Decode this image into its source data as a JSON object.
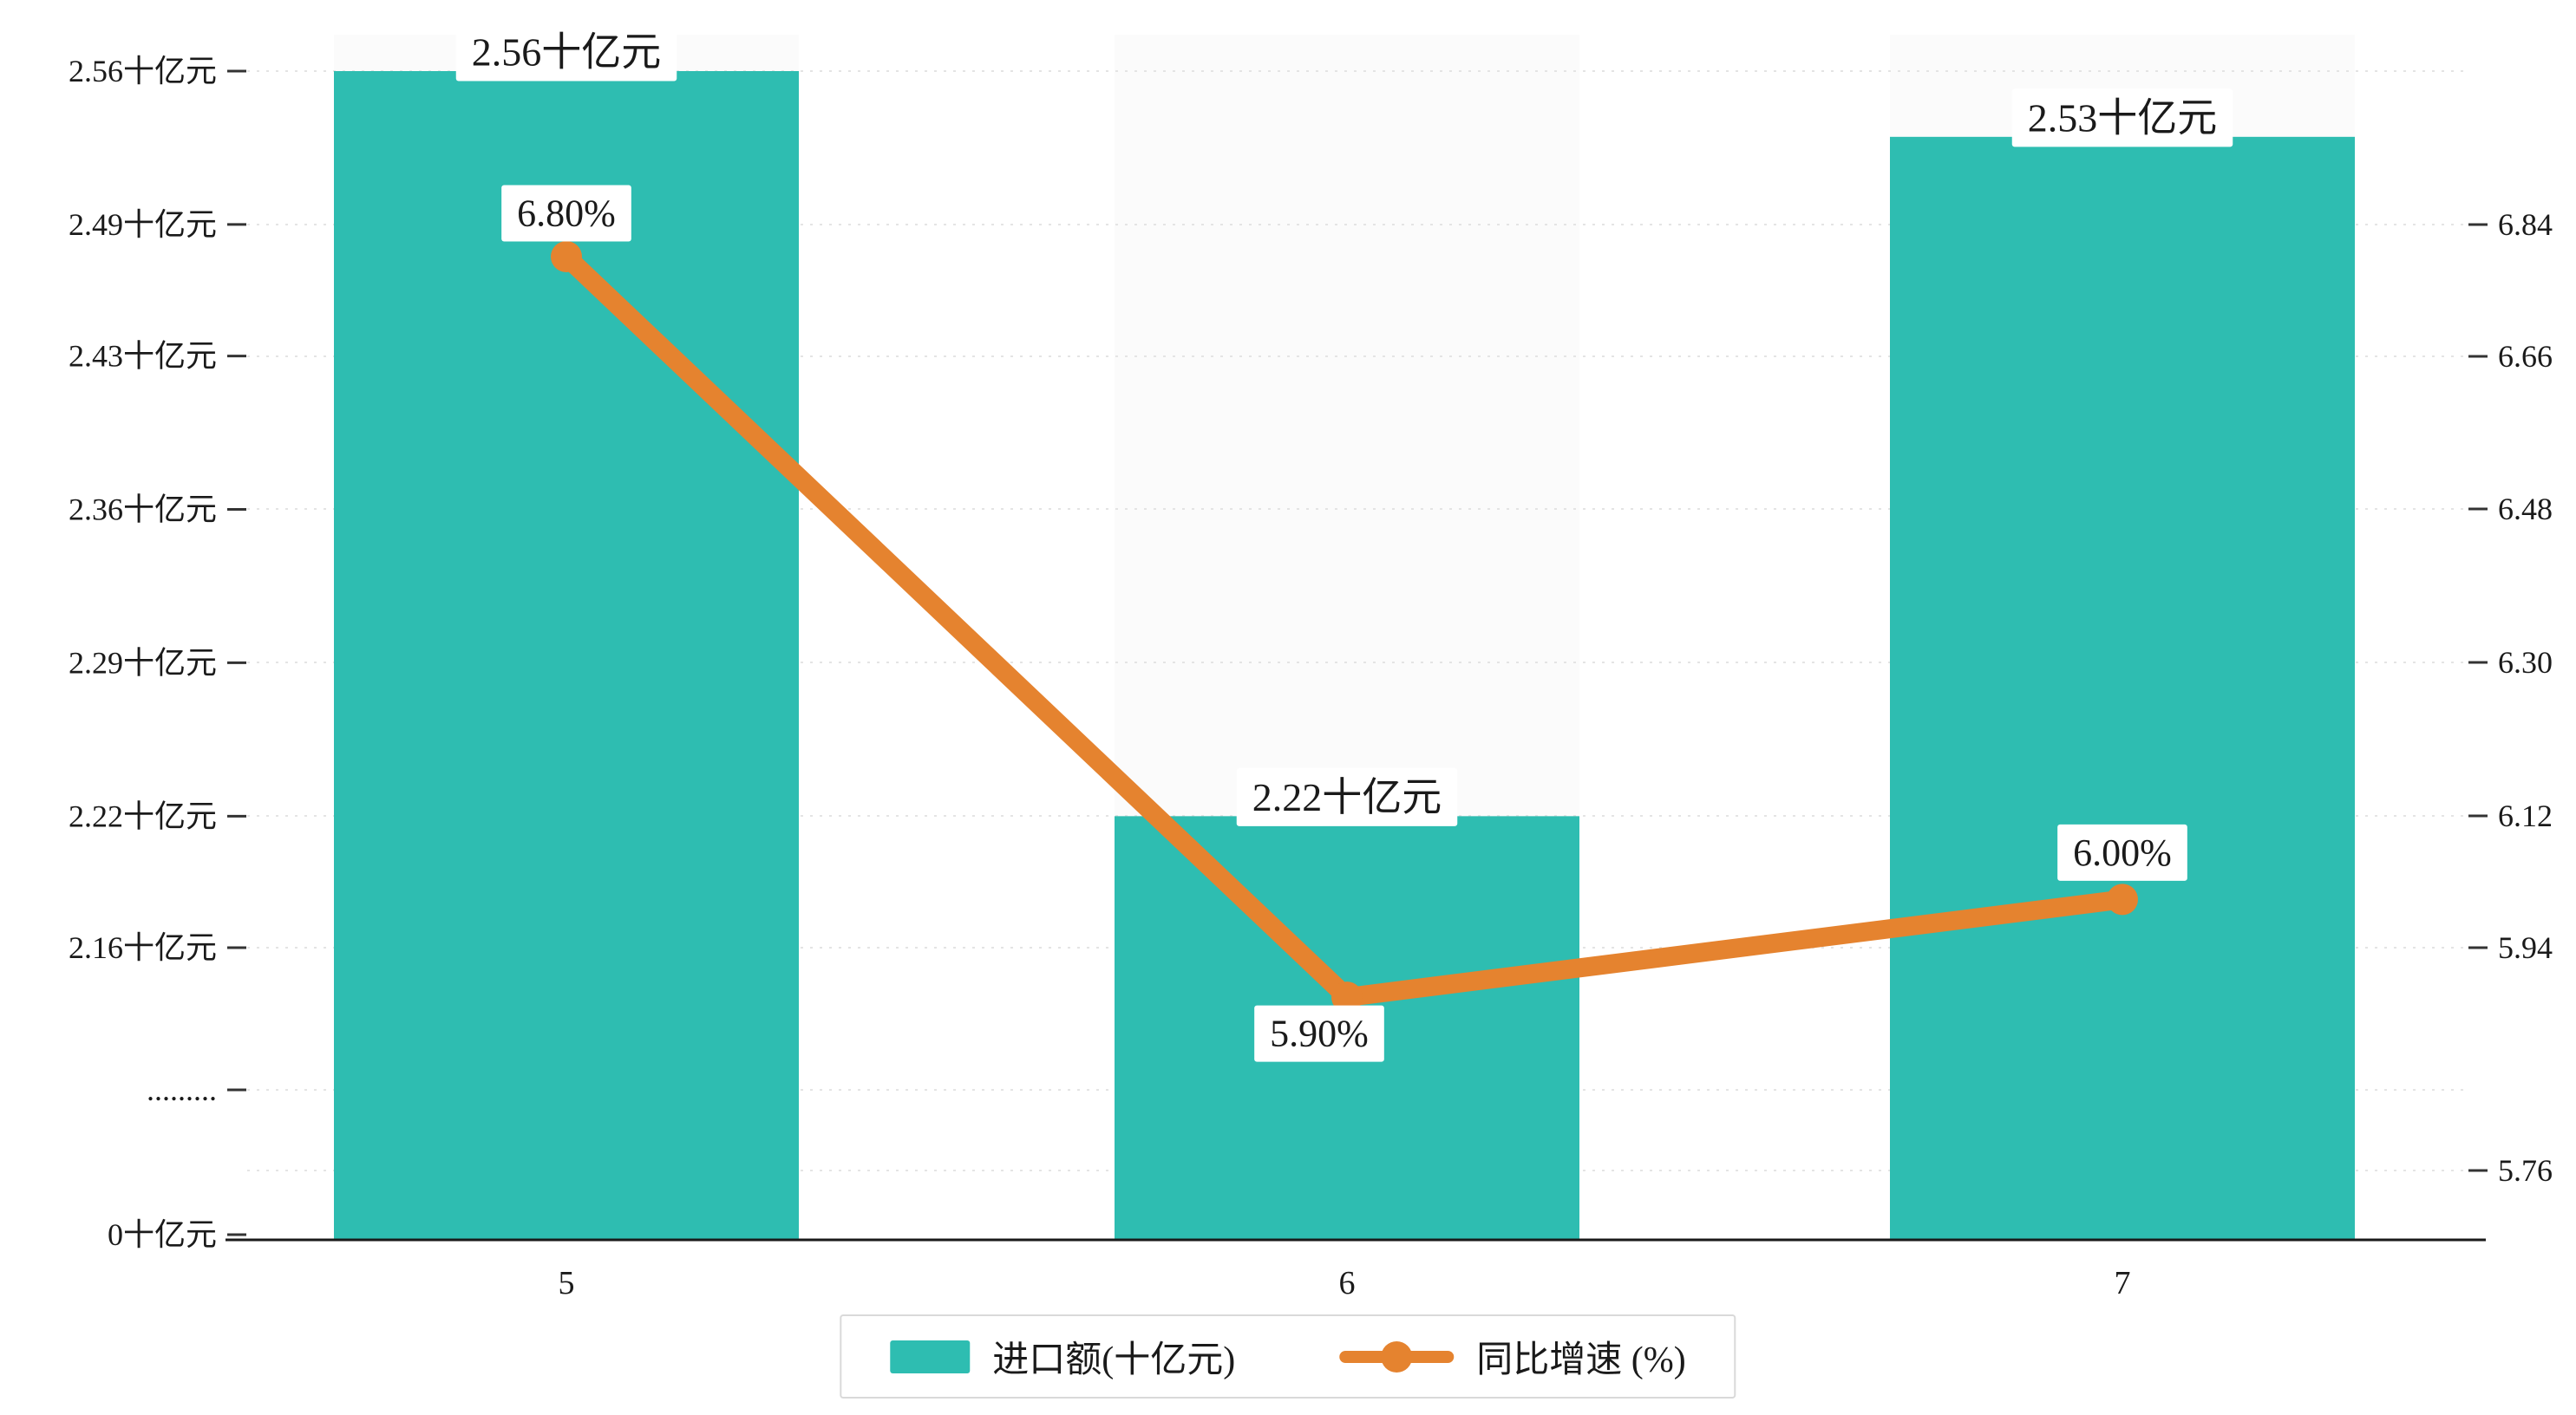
{
  "chart_data": {
    "type": "bar",
    "subtype": "bar-line-combo",
    "categories": [
      "5",
      "6",
      "7"
    ],
    "series": [
      {
        "name": "进口额(十亿元)",
        "type": "bar",
        "values": [
          2.56,
          2.22,
          2.53
        ],
        "data_labels": [
          "2.56十亿元",
          "2.22十亿元",
          "2.53十亿元"
        ],
        "color": "#2ebdb1",
        "axis": "left"
      },
      {
        "name": "同比增速 (%)",
        "type": "line",
        "values": [
          6.8,
          5.9,
          6.0
        ],
        "data_labels": [
          "6.80%",
          "5.90%",
          "6.00%"
        ],
        "color": "#e5832f",
        "axis": "right"
      }
    ],
    "left_axis": {
      "tick_labels": [
        "2.56十亿元",
        "2.49十亿元",
        "2.43十亿元",
        "2.36十亿元",
        "2.29十亿元",
        "2.22十亿元",
        "2.16十亿元",
        ".........",
        "0十亿元"
      ],
      "tick_values": [
        2.56,
        2.49,
        2.43,
        2.36,
        2.29,
        2.22,
        2.16,
        null,
        0
      ],
      "has_break": true
    },
    "right_axis": {
      "tick_labels": [
        "6.84",
        "6.66",
        "6.48",
        "6.30",
        "6.12",
        "5.94",
        "5.76"
      ],
      "tick_values": [
        6.84,
        6.66,
        6.48,
        6.3,
        6.12,
        5.94,
        5.76
      ]
    },
    "grid": true,
    "legend_position": "bottom",
    "title": "",
    "xlabel": "",
    "ylabel": ""
  }
}
